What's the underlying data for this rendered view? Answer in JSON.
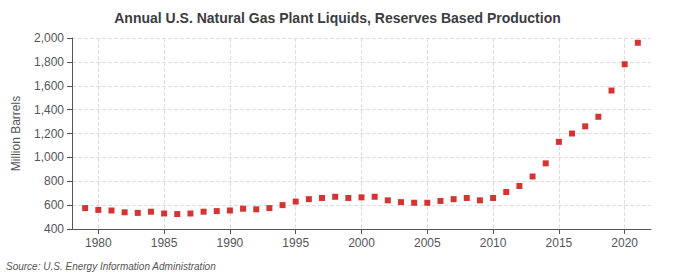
{
  "chart_data": {
    "type": "scatter",
    "title": "Annual U.S. Natural Gas Plant Liquids, Reserves Based Production",
    "ylabel": "Million Barrels",
    "annotation": "Source: U.S. Energy Information Administration",
    "x": [
      1979,
      1980,
      1981,
      1982,
      1983,
      1984,
      1985,
      1986,
      1987,
      1988,
      1989,
      1990,
      1991,
      1992,
      1993,
      1994,
      1995,
      1996,
      1997,
      1998,
      1999,
      2000,
      2001,
      2002,
      2003,
      2004,
      2005,
      2006,
      2007,
      2008,
      2009,
      2010,
      2011,
      2012,
      2013,
      2014,
      2015,
      2016,
      2017,
      2018,
      2019,
      2020,
      2021
    ],
    "values": [
      575,
      560,
      555,
      540,
      535,
      545,
      530,
      525,
      530,
      545,
      550,
      555,
      570,
      565,
      575,
      600,
      630,
      650,
      660,
      670,
      660,
      665,
      670,
      640,
      625,
      620,
      620,
      635,
      650,
      660,
      640,
      660,
      710,
      760,
      840,
      950,
      1130,
      1200,
      1260,
      1340,
      1560,
      1780,
      1960
    ],
    "color": "#cc0000",
    "marker": "square",
    "xlim": [
      1978,
      2022
    ],
    "xticks": [
      1980,
      1985,
      1990,
      1995,
      2000,
      2005,
      2010,
      2015,
      2020
    ],
    "ylim": [
      400,
      2000
    ],
    "yticks": [
      400,
      600,
      800,
      {
        "value": 1000,
        "label": "1,000"
      },
      {
        "value": 1200,
        "label": "1,200"
      },
      {
        "value": 1400,
        "label": "1,400"
      },
      {
        "value": 1600,
        "label": "1,600"
      },
      {
        "value": 1800,
        "label": "1,800"
      },
      {
        "value": 2000,
        "label": "2,000"
      }
    ],
    "grid": true
  }
}
